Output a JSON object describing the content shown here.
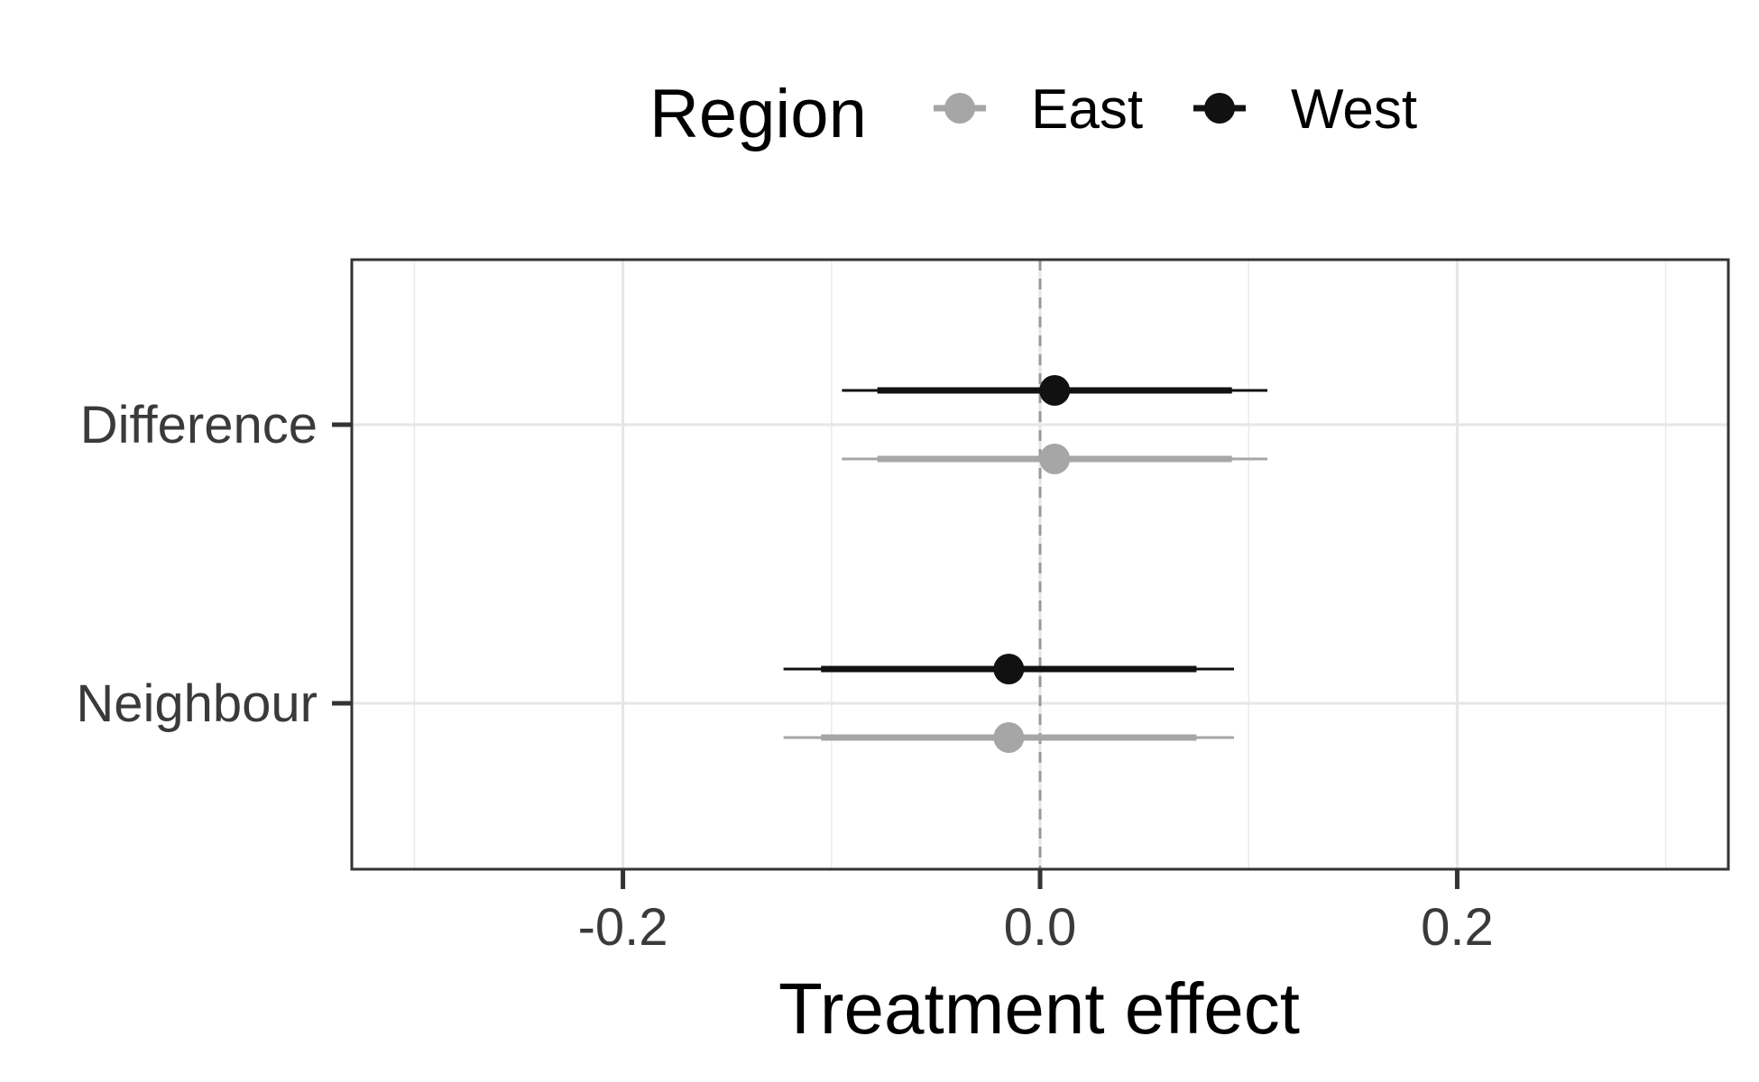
{
  "chart_data": {
    "type": "scatter",
    "subtype": "coefficient-plot",
    "title": "",
    "xlabel": "Treatment effect",
    "ylabel": "",
    "xlim": [
      -0.33,
      0.33
    ],
    "x_ticks": [
      -0.2,
      0.0,
      0.2
    ],
    "x_tick_labels": [
      "-0.2",
      "0.0",
      "0.2"
    ],
    "categories": [
      "Difference",
      "Neighbour"
    ],
    "reference_line": {
      "x": 0,
      "style": "dashed",
      "color": "#999999"
    },
    "grid": true,
    "legend": {
      "title": "Region",
      "position": "top"
    },
    "series": [
      {
        "name": "East",
        "color": "#a6a6a6",
        "points": [
          {
            "category": "Difference",
            "estimate": 0.007,
            "ci_inner": [
              -0.078,
              0.092
            ],
            "ci_outer": [
              -0.095,
              0.109
            ]
          },
          {
            "category": "Neighbour",
            "estimate": -0.015,
            "ci_inner": [
              -0.105,
              0.075
            ],
            "ci_outer": [
              -0.123,
              0.093
            ]
          }
        ]
      },
      {
        "name": "West",
        "color": "#111111",
        "points": [
          {
            "category": "Difference",
            "estimate": 0.007,
            "ci_inner": [
              -0.078,
              0.092
            ],
            "ci_outer": [
              -0.095,
              0.109
            ]
          },
          {
            "category": "Neighbour",
            "estimate": -0.015,
            "ci_inner": [
              -0.105,
              0.075
            ],
            "ci_outer": [
              -0.123,
              0.093
            ]
          }
        ]
      }
    ]
  }
}
